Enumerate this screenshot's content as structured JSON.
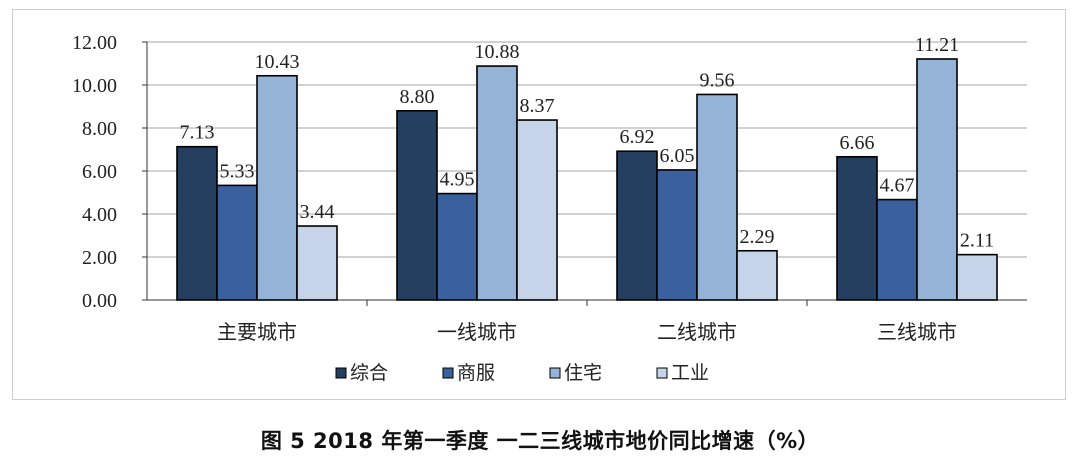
{
  "chart_data": {
    "type": "bar",
    "categories": [
      "主要城市",
      "一线城市",
      "二线城市",
      "三线城市"
    ],
    "series": [
      {
        "name": "综合",
        "values": [
          7.13,
          8.8,
          6.92,
          6.66
        ],
        "labels": [
          "7.13",
          "8.80",
          "6.92",
          "6.66"
        ],
        "color": "#243f60"
      },
      {
        "name": "商服",
        "values": [
          5.33,
          4.95,
          6.05,
          4.67
        ],
        "labels": [
          "5.33",
          "4.95",
          "6.05",
          "4.67"
        ],
        "color": "#3a619e"
      },
      {
        "name": "住宅",
        "values": [
          10.43,
          10.88,
          9.56,
          11.21
        ],
        "labels": [
          "10.43",
          "10.88",
          "9.56",
          "11.21"
        ],
        "color": "#95b3d7"
      },
      {
        "name": "工业",
        "values": [
          3.44,
          8.37,
          2.29,
          2.11
        ],
        "labels": [
          "3.44",
          "8.37",
          "2.29",
          "2.11"
        ],
        "color": "#c6d4ea"
      }
    ],
    "yticks": [
      "0.00",
      "2.00",
      "4.00",
      "6.00",
      "8.00",
      "10.00",
      "12.00"
    ],
    "ylim": [
      0,
      12
    ],
    "grid": true,
    "legend_position": "bottom"
  },
  "caption": "图 5   2018 年第一季度 一二三线城市地价同比增速（%）"
}
